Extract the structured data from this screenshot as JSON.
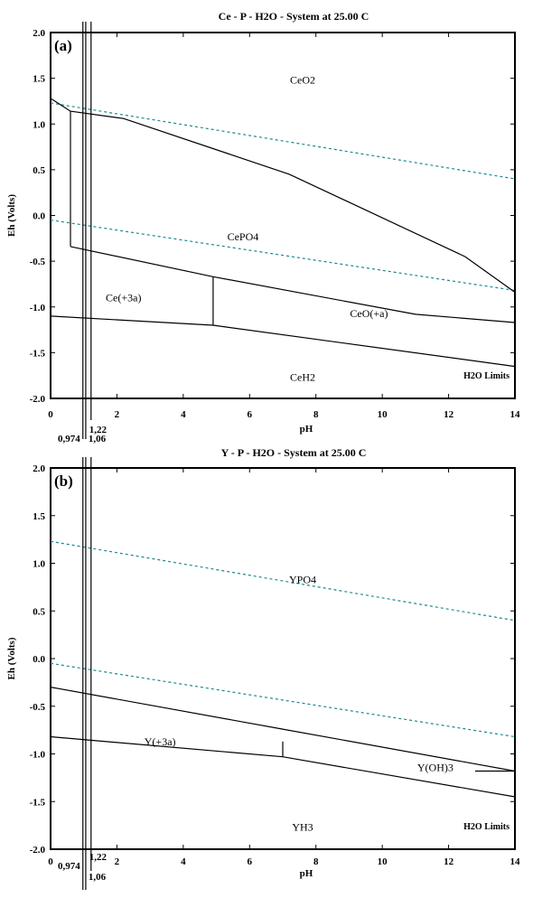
{
  "chart_data": [
    {
      "type": "line",
      "panel_label": "(a)",
      "title": "Ce - P - H2O - System at 25.00 C",
      "xlabel": "pH",
      "ylabel": "Eh (Volts)",
      "xlim": [
        0,
        14
      ],
      "ylim": [
        -2.0,
        2.0
      ],
      "x_ticks": [
        "0",
        "2",
        "4",
        "6",
        "8",
        "10",
        "12",
        "14"
      ],
      "y_ticks": [
        "2.0",
        "1.5",
        "1.0",
        "0.5",
        "0.0",
        "-0.5",
        "-1.0",
        "-1.5",
        "-2.0"
      ],
      "ph_markers": [
        {
          "x": 0.974,
          "label": "0,974"
        },
        {
          "x": 1.06,
          "label": "1,06"
        },
        {
          "x": 1.22,
          "label": "1,22"
        }
      ],
      "water_limits": {
        "label": "H2O Limits",
        "upper": [
          [
            0,
            1.23
          ],
          [
            14,
            0.4
          ]
        ],
        "lower": [
          [
            0,
            -0.05
          ],
          [
            14,
            -0.82
          ]
        ]
      },
      "boundaries": [
        [
          [
            0,
            1.28
          ],
          [
            0.6,
            1.14
          ],
          [
            2.2,
            1.06
          ],
          [
            7.2,
            0.45
          ],
          [
            12.5,
            -0.45
          ],
          [
            14,
            -0.84
          ]
        ],
        [
          [
            0.6,
            1.14
          ],
          [
            0.6,
            -0.34
          ]
        ],
        [
          [
            0.6,
            -0.34
          ],
          [
            4.9,
            -0.67
          ],
          [
            11,
            -1.08
          ],
          [
            14,
            -1.17
          ]
        ],
        [
          [
            4.9,
            -0.67
          ],
          [
            4.9,
            -1.2
          ]
        ],
        [
          [
            0,
            -1.1
          ],
          [
            4.9,
            -1.2
          ],
          [
            14,
            -1.65
          ]
        ]
      ],
      "regions": [
        {
          "name": "CeO2",
          "x": 7.6,
          "y": 1.48
        },
        {
          "name": "CePO4",
          "x": 5.8,
          "y": -0.23
        },
        {
          "name": "Ce(+3a)",
          "x": 2.2,
          "y": -0.9
        },
        {
          "name": "CeO(+a)",
          "x": 9.6,
          "y": -1.07
        },
        {
          "name": "CeH2",
          "x": 7.6,
          "y": -1.77
        }
      ]
    },
    {
      "type": "line",
      "panel_label": "(b)",
      "title": "Y - P - H2O - System at 25.00 C",
      "xlabel": "pH",
      "ylabel": "Eh (Volts)",
      "xlim": [
        0,
        14
      ],
      "ylim": [
        -2.0,
        2.0
      ],
      "x_ticks": [
        "0",
        "2",
        "4",
        "6",
        "8",
        "10",
        "12",
        "14"
      ],
      "y_ticks": [
        "2.0",
        "1.5",
        "1.0",
        "0.5",
        "0.0",
        "-0.5",
        "-1.0",
        "-1.5",
        "-2.0"
      ],
      "ph_markers": [
        {
          "x": 0.974,
          "label": "0,974"
        },
        {
          "x": 1.06,
          "label": "1,06"
        },
        {
          "x": 1.22,
          "label": "1,22"
        }
      ],
      "water_limits": {
        "label": "H2O Limits",
        "upper": [
          [
            0,
            1.23
          ],
          [
            14,
            0.4
          ]
        ],
        "lower": [
          [
            0,
            -0.05
          ],
          [
            14,
            -0.82
          ]
        ]
      },
      "boundaries": [
        [
          [
            0,
            -0.3
          ],
          [
            7,
            -0.74
          ],
          [
            14,
            -1.18
          ]
        ],
        [
          [
            7,
            -0.87
          ],
          [
            7,
            -1.03
          ]
        ],
        [
          [
            0,
            -0.82
          ],
          [
            7,
            -1.03
          ],
          [
            14,
            -1.45
          ]
        ],
        [
          [
            12.8,
            -1.18
          ],
          [
            14,
            -1.18
          ]
        ]
      ],
      "regions": [
        {
          "name": "YPO4",
          "x": 7.6,
          "y": 0.83
        },
        {
          "name": "Y(+3a)",
          "x": 3.3,
          "y": -0.87
        },
        {
          "name": "Y(OH)3",
          "x": 11.6,
          "y": -1.14
        },
        {
          "name": "YH3",
          "x": 7.6,
          "y": -1.77
        }
      ]
    }
  ]
}
